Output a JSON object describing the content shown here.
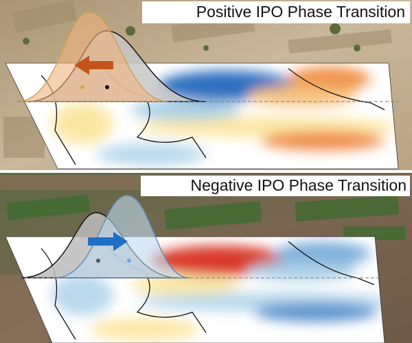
{
  "panels": [
    {
      "title": "Positive IPO Phase Transition"
    },
    {
      "title": "Negative IPO Phase Transition"
    }
  ]
}
